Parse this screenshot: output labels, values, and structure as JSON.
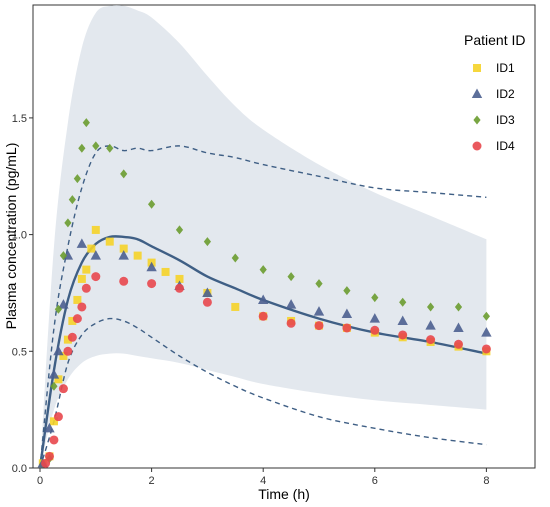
{
  "chart_data": {
    "type": "scatter",
    "xlabel": "Time (h)",
    "ylabel": "Plasma concentration (pg/mL)",
    "xlim": [
      0,
      9
    ],
    "ylim": [
      0,
      1.98
    ],
    "x_ticks": [
      "0",
      "2",
      "4",
      "6",
      "8"
    ],
    "y_ticks": [
      "0.0",
      "0.5",
      "1.0",
      "1.5"
    ],
    "grid": false,
    "legend": {
      "title": "Patient ID",
      "placement": "top-right",
      "items": [
        "ID1",
        "ID2",
        "ID3",
        "ID4"
      ]
    },
    "series": [
      {
        "name": "ID1",
        "marker": "square",
        "color": "#f5d328",
        "x": [
          0.05,
          0.17,
          0.25,
          0.33,
          0.42,
          0.5,
          0.58,
          0.67,
          0.75,
          0.83,
          0.92,
          1.0,
          1.25,
          1.5,
          1.75,
          2.0,
          2.25,
          2.5,
          3.0,
          3.5,
          4.0,
          4.5,
          5.0,
          5.5,
          6.0,
          6.5,
          7.0,
          7.5,
          8.0
        ],
        "y": [
          0.02,
          0.05,
          0.2,
          0.38,
          0.48,
          0.55,
          0.63,
          0.72,
          0.81,
          0.85,
          0.94,
          1.02,
          0.97,
          0.94,
          0.91,
          0.88,
          0.84,
          0.81,
          0.75,
          0.69,
          0.65,
          0.63,
          0.61,
          0.6,
          0.58,
          0.56,
          0.54,
          0.52,
          0.5
        ]
      },
      {
        "name": "ID2",
        "marker": "triangle",
        "color": "#4b5f8f",
        "x": [
          0.05,
          0.17,
          0.25,
          0.33,
          0.42,
          0.5,
          0.75,
          1.0,
          1.5,
          2.0,
          2.5,
          3.0,
          4.0,
          4.5,
          5.0,
          5.5,
          6.0,
          6.5,
          7.0,
          7.5,
          8.0
        ],
        "y": [
          0.02,
          0.17,
          0.4,
          0.5,
          0.7,
          0.91,
          0.96,
          0.91,
          0.91,
          0.86,
          0.78,
          0.75,
          0.72,
          0.7,
          0.67,
          0.66,
          0.64,
          0.63,
          0.61,
          0.6,
          0.58
        ]
      },
      {
        "name": "ID3",
        "marker": "diamond",
        "color": "#6a9c2f",
        "x": [
          0.17,
          0.25,
          0.33,
          0.42,
          0.5,
          0.58,
          0.67,
          0.75,
          0.83,
          1.0,
          1.25,
          1.5,
          2.0,
          2.5,
          3.0,
          3.5,
          4.0,
          4.5,
          5.0,
          5.5,
          6.0,
          6.5,
          7.0,
          7.5,
          8.0
        ],
        "y": [
          0.04,
          0.35,
          0.68,
          0.91,
          1.05,
          1.15,
          1.24,
          1.37,
          1.48,
          1.38,
          1.37,
          1.26,
          1.13,
          1.02,
          0.97,
          0.9,
          0.85,
          0.82,
          0.79,
          0.76,
          0.73,
          0.71,
          0.69,
          0.69,
          0.65
        ]
      },
      {
        "name": "ID4",
        "marker": "circle",
        "color": "#e8474d",
        "x": [
          0.1,
          0.17,
          0.25,
          0.33,
          0.42,
          0.5,
          0.58,
          0.67,
          0.75,
          0.83,
          1.0,
          1.5,
          2.0,
          2.5,
          3.0,
          4.0,
          4.5,
          5.0,
          5.5,
          6.0,
          6.5,
          7.0,
          7.5,
          8.0
        ],
        "y": [
          0.02,
          0.05,
          0.12,
          0.22,
          0.34,
          0.5,
          0.56,
          0.64,
          0.69,
          0.77,
          0.82,
          0.8,
          0.79,
          0.77,
          0.71,
          0.65,
          0.62,
          0.61,
          0.6,
          0.59,
          0.57,
          0.55,
          0.53,
          0.51
        ]
      }
    ],
    "median_curve": {
      "color": "#3f5f85",
      "x": [
        0,
        0.25,
        0.5,
        0.75,
        1.0,
        1.25,
        1.5,
        1.75,
        2.0,
        2.5,
        3.0,
        3.5,
        4.0,
        5.0,
        6.0,
        7.0,
        8.0
      ],
      "y": [
        0,
        0.42,
        0.72,
        0.88,
        0.96,
        0.99,
        0.99,
        0.98,
        0.95,
        0.89,
        0.82,
        0.77,
        0.72,
        0.64,
        0.58,
        0.54,
        0.49
      ]
    },
    "pi_upper": {
      "x": [
        0,
        0.25,
        0.5,
        0.75,
        1.0,
        1.25,
        1.5,
        1.75,
        2.0,
        2.5,
        3.0,
        3.5,
        4.0,
        5.0,
        6.0,
        7.0,
        8.0
      ],
      "y": [
        0,
        0.6,
        0.95,
        1.2,
        1.35,
        1.38,
        1.36,
        1.37,
        1.36,
        1.38,
        1.35,
        1.33,
        1.3,
        1.25,
        1.2,
        1.18,
        1.16
      ]
    },
    "pi_lower": {
      "x": [
        0,
        0.25,
        0.5,
        0.75,
        1.0,
        1.25,
        1.5,
        1.75,
        2.0,
        2.5,
        3.0,
        3.5,
        4.0,
        5.0,
        6.0,
        7.0,
        8.0
      ],
      "y": [
        0,
        0.2,
        0.45,
        0.57,
        0.62,
        0.64,
        0.63,
        0.6,
        0.56,
        0.48,
        0.41,
        0.35,
        0.3,
        0.22,
        0.17,
        0.13,
        0.1
      ]
    },
    "ci_band": {
      "color": "#e3e8ee",
      "x": [
        0,
        0.25,
        0.5,
        0.75,
        1.0,
        1.25,
        1.5,
        1.75,
        2.0,
        2.5,
        3.0,
        3.5,
        4.0,
        5.0,
        6.0,
        7.0,
        8.0
      ],
      "upper": [
        0,
        0.95,
        1.48,
        1.8,
        1.95,
        1.98,
        1.98,
        1.96,
        1.93,
        1.82,
        1.68,
        1.55,
        1.45,
        1.3,
        1.18,
        1.08,
        0.98
      ],
      "lower": [
        0,
        0.25,
        0.38,
        0.45,
        0.48,
        0.49,
        0.49,
        0.48,
        0.47,
        0.45,
        0.42,
        0.39,
        0.36,
        0.32,
        0.29,
        0.27,
        0.25
      ]
    }
  }
}
